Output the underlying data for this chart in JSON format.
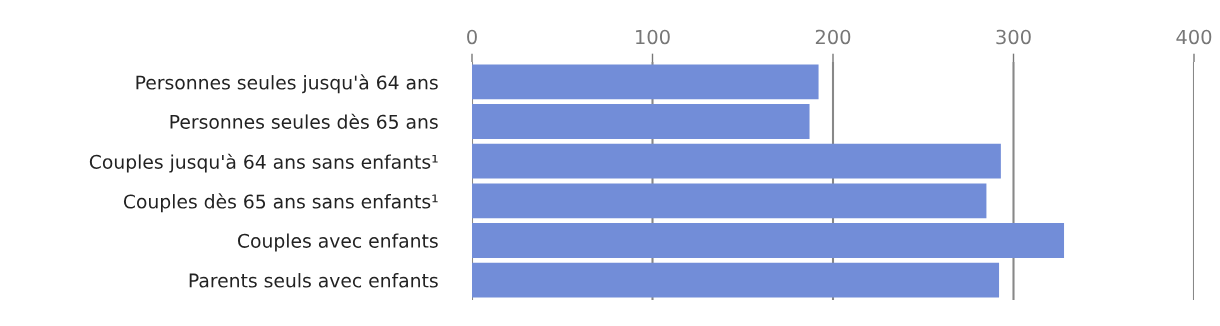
{
  "chart_data": {
    "type": "bar",
    "orientation": "horizontal",
    "categories": [
      "Personnes seules jusqu'à 64 ans",
      "Personnes seules dès 65 ans",
      "Couples jusqu'à 64 ans sans enfants¹",
      "Couples dès 65 ans sans enfants¹",
      "Couples avec enfants",
      "Parents seuls avec enfants"
    ],
    "values": [
      192,
      187,
      293,
      285,
      328,
      292
    ],
    "color": "#728dd8",
    "xlim": [
      0,
      400
    ],
    "xticks": [
      0,
      100,
      200,
      300,
      400
    ],
    "grid": "x"
  }
}
